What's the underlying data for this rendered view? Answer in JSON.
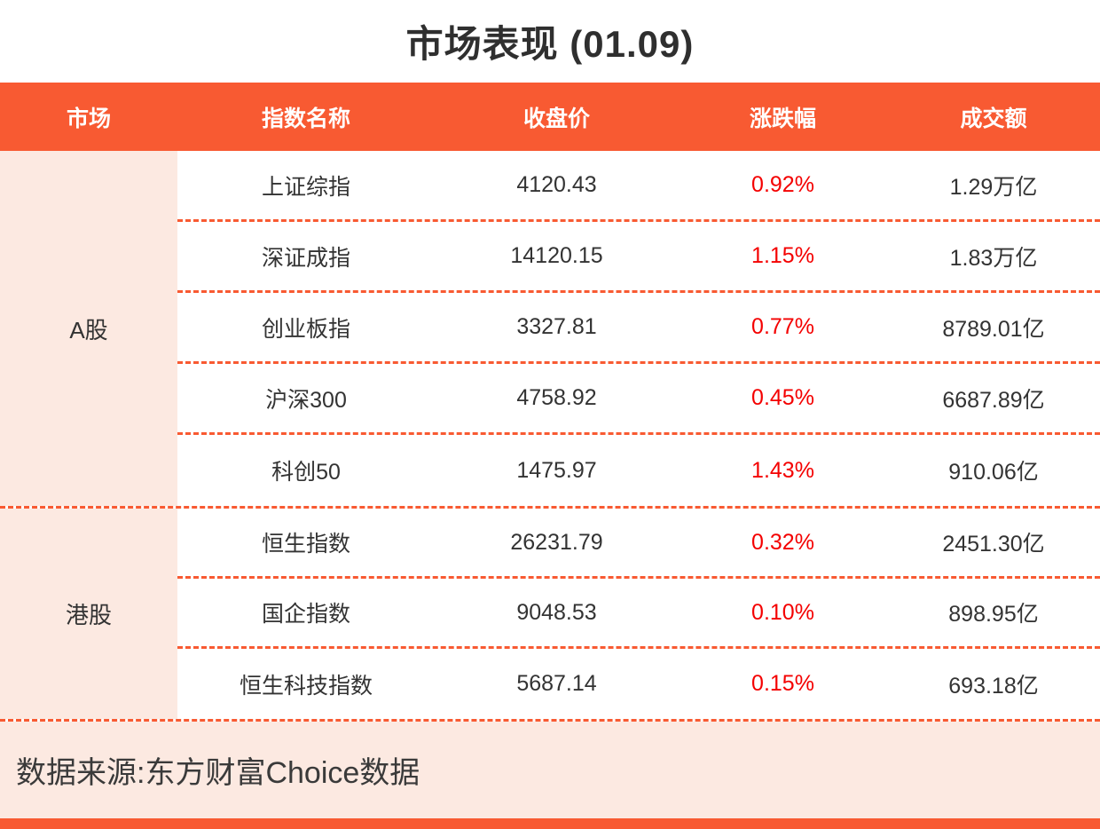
{
  "title": "市场表现 (01.09)",
  "table": {
    "columns": [
      "市场",
      "指数名称",
      "收盘价",
      "涨跌幅",
      "成交额"
    ],
    "groups": [
      {
        "market": "A股",
        "rows": [
          {
            "name": "上证综指",
            "close": "4120.43",
            "change": "0.92%",
            "turnover": "1.29万亿"
          },
          {
            "name": "深证成指",
            "close": "14120.15",
            "change": "1.15%",
            "turnover": "1.83万亿"
          },
          {
            "name": "创业板指",
            "close": "3327.81",
            "change": "0.77%",
            "turnover": "8789.01亿"
          },
          {
            "name": "沪深300",
            "close": "4758.92",
            "change": "0.45%",
            "turnover": "6687.89亿"
          },
          {
            "name": "科创50",
            "close": "1475.97",
            "change": "1.43%",
            "turnover": "910.06亿"
          }
        ]
      },
      {
        "market": "港股",
        "rows": [
          {
            "name": "恒生指数",
            "close": "26231.79",
            "change": "0.32%",
            "turnover": "2451.30亿"
          },
          {
            "name": "国企指数",
            "close": "9048.53",
            "change": "0.10%",
            "turnover": "898.95亿"
          },
          {
            "name": "恒生科技指数",
            "close": "5687.14",
            "change": "0.15%",
            "turnover": "693.18亿"
          }
        ]
      }
    ]
  },
  "footer": {
    "source": "数据来源:东方财富Choice数据"
  },
  "colors": {
    "accent_orange": "#F85A32",
    "panel_pink": "#FCE9E1",
    "change_red": "#F40000",
    "text_dark": "#333333"
  },
  "chart_data": {
    "type": "table",
    "title": "市场表现 (01.09)",
    "columns": [
      "市场",
      "指数名称",
      "收盘价",
      "涨跌幅",
      "成交额"
    ],
    "rows": [
      [
        "A股",
        "上证综指",
        "4120.43",
        "0.92%",
        "1.29万亿"
      ],
      [
        "A股",
        "深证成指",
        "14120.15",
        "1.15%",
        "1.83万亿"
      ],
      [
        "A股",
        "创业板指",
        "3327.81",
        "0.77%",
        "8789.01亿"
      ],
      [
        "A股",
        "沪深300",
        "4758.92",
        "0.45%",
        "6687.89亿"
      ],
      [
        "A股",
        "科创50",
        "1475.97",
        "1.43%",
        "910.06亿"
      ],
      [
        "港股",
        "恒生指数",
        "26231.79",
        "0.32%",
        "2451.30亿"
      ],
      [
        "港股",
        "国企指数",
        "9048.53",
        "0.10%",
        "898.95亿"
      ],
      [
        "港股",
        "恒生科技指数",
        "5687.14",
        "0.15%",
        "693.18亿"
      ]
    ],
    "notes": "数据来源:东方财富Choice数据"
  }
}
